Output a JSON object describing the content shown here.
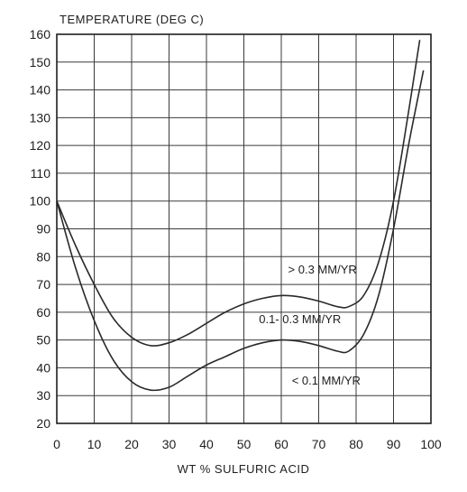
{
  "chart_data": {
    "type": "line",
    "ylabel": "TEMPERATURE (DEG C)",
    "xlabel": "WT % SULFURIC ACID",
    "xlim": [
      0,
      100
    ],
    "ylim": [
      20,
      160
    ],
    "xticks": [
      0,
      10,
      20,
      30,
      40,
      50,
      60,
      70,
      80,
      90,
      100
    ],
    "yticks": [
      20,
      30,
      40,
      50,
      60,
      70,
      80,
      90,
      100,
      110,
      120,
      130,
      140,
      150,
      160
    ],
    "grid": true,
    "series": [
      {
        "x": [
          0,
          5,
          10,
          15,
          20,
          25,
          30,
          35,
          40,
          45,
          50,
          55,
          60,
          65,
          70,
          75,
          78,
          82,
          86,
          90,
          94,
          97
        ],
        "y": [
          100,
          84,
          70,
          58,
          51,
          48,
          49,
          52,
          56,
          60,
          63,
          65,
          66,
          65.5,
          64,
          62,
          62,
          66,
          78,
          100,
          132,
          158
        ]
      },
      {
        "x": [
          0,
          5,
          10,
          15,
          20,
          25,
          30,
          35,
          40,
          45,
          50,
          55,
          60,
          65,
          70,
          75,
          78,
          82,
          86,
          90,
          94,
          98
        ],
        "y": [
          100,
          76,
          57,
          43,
          35,
          32,
          33,
          37,
          41,
          44,
          47,
          49,
          50,
          49.5,
          48,
          46,
          46,
          52,
          66,
          90,
          120,
          147
        ]
      }
    ],
    "annotations": [
      {
        "text": "> 0.3 MM/YR",
        "x": 71,
        "y": 74
      },
      {
        "text": "0.1- 0.3 MM/YR",
        "x": 65,
        "y": 56
      },
      {
        "text": "< 0.1 MM/YR",
        "x": 72,
        "y": 34
      }
    ]
  }
}
